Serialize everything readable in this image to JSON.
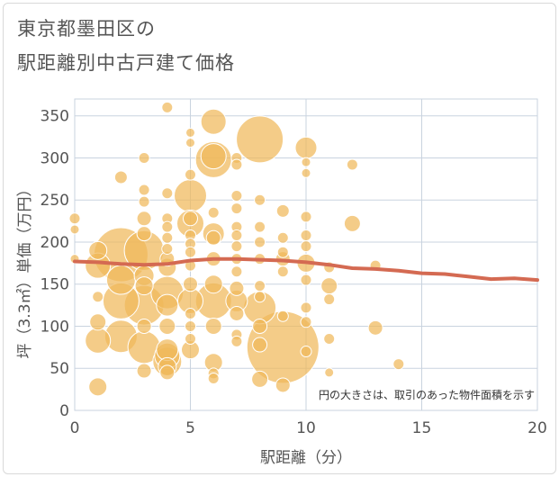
{
  "title_line1": "東京都墨田区の",
  "title_line2": "駅距離別中古戸建て価格",
  "colors": {
    "bubble_fill": "#f0b95a",
    "bubble_stroke": "#ffffff",
    "trend_line": "#d46a52",
    "grid": "#c9d3df",
    "text": "#555555"
  },
  "chart_data": {
    "type": "scatter",
    "xlabel": "駅距離（分）",
    "ylabel": "坪（3.3㎡）単価（万円）",
    "xlim": [
      0,
      20
    ],
    "ylim": [
      0,
      370
    ],
    "x_ticks": [
      0,
      5,
      10,
      15,
      20
    ],
    "y_ticks": [
      0,
      50,
      100,
      150,
      200,
      250,
      300,
      350
    ],
    "grid": true,
    "note": "円の大きさは、取引のあった物件面積を示す",
    "bubbles": [
      {
        "x": 0,
        "y": 228,
        "size": 6
      },
      {
        "x": 0,
        "y": 215,
        "size": 5
      },
      {
        "x": 0,
        "y": 180,
        "size": 5
      },
      {
        "x": 1,
        "y": 190,
        "size": 10
      },
      {
        "x": 1,
        "y": 172,
        "size": 14
      },
      {
        "x": 1,
        "y": 135,
        "size": 6
      },
      {
        "x": 1,
        "y": 105,
        "size": 9
      },
      {
        "x": 1,
        "y": 83,
        "size": 14
      },
      {
        "x": 1,
        "y": 28,
        "size": 10
      },
      {
        "x": 2,
        "y": 277,
        "size": 7
      },
      {
        "x": 2,
        "y": 185,
        "size": 30
      },
      {
        "x": 2,
        "y": 155,
        "size": 16
      },
      {
        "x": 2,
        "y": 130,
        "size": 20
      },
      {
        "x": 2,
        "y": 88,
        "size": 18
      },
      {
        "x": 3,
        "y": 300,
        "size": 6
      },
      {
        "x": 3,
        "y": 262,
        "size": 6
      },
      {
        "x": 3,
        "y": 248,
        "size": 6
      },
      {
        "x": 3,
        "y": 228,
        "size": 8
      },
      {
        "x": 3,
        "y": 210,
        "size": 8
      },
      {
        "x": 3,
        "y": 190,
        "size": 22
      },
      {
        "x": 3,
        "y": 160,
        "size": 11
      },
      {
        "x": 3,
        "y": 148,
        "size": 10
      },
      {
        "x": 3,
        "y": 125,
        "size": 22
      },
      {
        "x": 3,
        "y": 100,
        "size": 8
      },
      {
        "x": 3,
        "y": 75,
        "size": 18
      },
      {
        "x": 3,
        "y": 47,
        "size": 8
      },
      {
        "x": 4,
        "y": 360,
        "size": 6
      },
      {
        "x": 4,
        "y": 258,
        "size": 6
      },
      {
        "x": 4,
        "y": 228,
        "size": 6
      },
      {
        "x": 4,
        "y": 218,
        "size": 6
      },
      {
        "x": 4,
        "y": 205,
        "size": 6
      },
      {
        "x": 4,
        "y": 192,
        "size": 6
      },
      {
        "x": 4,
        "y": 180,
        "size": 8
      },
      {
        "x": 4,
        "y": 170,
        "size": 10
      },
      {
        "x": 4,
        "y": 140,
        "size": 18
      },
      {
        "x": 4,
        "y": 125,
        "size": 12
      },
      {
        "x": 4,
        "y": 100,
        "size": 9
      },
      {
        "x": 4,
        "y": 72,
        "size": 12
      },
      {
        "x": 4,
        "y": 65,
        "size": 14
      },
      {
        "x": 4,
        "y": 58,
        "size": 16
      },
      {
        "x": 4,
        "y": 52,
        "size": 10
      },
      {
        "x": 4,
        "y": 45,
        "size": 8
      },
      {
        "x": 5,
        "y": 330,
        "size": 5
      },
      {
        "x": 5,
        "y": 318,
        "size": 5
      },
      {
        "x": 5,
        "y": 280,
        "size": 6
      },
      {
        "x": 5,
        "y": 255,
        "size": 18
      },
      {
        "x": 5,
        "y": 228,
        "size": 8
      },
      {
        "x": 5,
        "y": 222,
        "size": 15
      },
      {
        "x": 5,
        "y": 208,
        "size": 6
      },
      {
        "x": 5,
        "y": 198,
        "size": 6
      },
      {
        "x": 5,
        "y": 188,
        "size": 6
      },
      {
        "x": 5,
        "y": 172,
        "size": 6
      },
      {
        "x": 5,
        "y": 150,
        "size": 8
      },
      {
        "x": 5,
        "y": 130,
        "size": 14
      },
      {
        "x": 5,
        "y": 115,
        "size": 6
      },
      {
        "x": 5,
        "y": 100,
        "size": 6
      },
      {
        "x": 5,
        "y": 85,
        "size": 6
      },
      {
        "x": 5,
        "y": 72,
        "size": 10
      },
      {
        "x": 6,
        "y": 343,
        "size": 14
      },
      {
        "x": 6,
        "y": 302,
        "size": 14
      },
      {
        "x": 6,
        "y": 298,
        "size": 20
      },
      {
        "x": 6,
        "y": 235,
        "size": 6
      },
      {
        "x": 6,
        "y": 210,
        "size": 12
      },
      {
        "x": 6,
        "y": 205,
        "size": 8
      },
      {
        "x": 6,
        "y": 180,
        "size": 8
      },
      {
        "x": 6,
        "y": 150,
        "size": 10
      },
      {
        "x": 6,
        "y": 130,
        "size": 20
      },
      {
        "x": 6,
        "y": 100,
        "size": 9
      },
      {
        "x": 6,
        "y": 57,
        "size": 10
      },
      {
        "x": 6,
        "y": 44,
        "size": 6
      },
      {
        "x": 6,
        "y": 38,
        "size": 6
      },
      {
        "x": 7,
        "y": 300,
        "size": 6
      },
      {
        "x": 7,
        "y": 292,
        "size": 6
      },
      {
        "x": 7,
        "y": 255,
        "size": 6
      },
      {
        "x": 7,
        "y": 240,
        "size": 6
      },
      {
        "x": 7,
        "y": 218,
        "size": 6
      },
      {
        "x": 7,
        "y": 208,
        "size": 6
      },
      {
        "x": 7,
        "y": 195,
        "size": 6
      },
      {
        "x": 7,
        "y": 180,
        "size": 6
      },
      {
        "x": 7,
        "y": 165,
        "size": 6
      },
      {
        "x": 7,
        "y": 145,
        "size": 8
      },
      {
        "x": 7,
        "y": 130,
        "size": 12
      },
      {
        "x": 7,
        "y": 115,
        "size": 8
      },
      {
        "x": 7,
        "y": 90,
        "size": 6
      },
      {
        "x": 7,
        "y": 82,
        "size": 6
      },
      {
        "x": 8,
        "y": 322,
        "size": 26
      },
      {
        "x": 8,
        "y": 250,
        "size": 6
      },
      {
        "x": 8,
        "y": 218,
        "size": 6
      },
      {
        "x": 8,
        "y": 200,
        "size": 6
      },
      {
        "x": 8,
        "y": 180,
        "size": 6
      },
      {
        "x": 8,
        "y": 148,
        "size": 6
      },
      {
        "x": 8,
        "y": 135,
        "size": 6
      },
      {
        "x": 8,
        "y": 122,
        "size": 18
      },
      {
        "x": 8,
        "y": 100,
        "size": 8
      },
      {
        "x": 8,
        "y": 78,
        "size": 8
      },
      {
        "x": 8,
        "y": 37,
        "size": 9
      },
      {
        "x": 9,
        "y": 237,
        "size": 7
      },
      {
        "x": 9,
        "y": 205,
        "size": 6
      },
      {
        "x": 9,
        "y": 188,
        "size": 6
      },
      {
        "x": 9,
        "y": 180,
        "size": 8
      },
      {
        "x": 9,
        "y": 165,
        "size": 6
      },
      {
        "x": 9,
        "y": 112,
        "size": 6
      },
      {
        "x": 9,
        "y": 75,
        "size": 40
      },
      {
        "x": 9,
        "y": 30,
        "size": 8
      },
      {
        "x": 10,
        "y": 312,
        "size": 12
      },
      {
        "x": 10,
        "y": 295,
        "size": 5
      },
      {
        "x": 10,
        "y": 282,
        "size": 5
      },
      {
        "x": 10,
        "y": 230,
        "size": 6
      },
      {
        "x": 10,
        "y": 208,
        "size": 6
      },
      {
        "x": 10,
        "y": 195,
        "size": 6
      },
      {
        "x": 10,
        "y": 175,
        "size": 10
      },
      {
        "x": 10,
        "y": 155,
        "size": 6
      },
      {
        "x": 10,
        "y": 122,
        "size": 6
      },
      {
        "x": 10,
        "y": 105,
        "size": 6
      },
      {
        "x": 10,
        "y": 70,
        "size": 6
      },
      {
        "x": 11,
        "y": 170,
        "size": 6
      },
      {
        "x": 11,
        "y": 148,
        "size": 9
      },
      {
        "x": 11,
        "y": 132,
        "size": 6
      },
      {
        "x": 11,
        "y": 85,
        "size": 6
      },
      {
        "x": 11,
        "y": 45,
        "size": 5
      },
      {
        "x": 12,
        "y": 292,
        "size": 6
      },
      {
        "x": 12,
        "y": 222,
        "size": 9
      },
      {
        "x": 13,
        "y": 172,
        "size": 6
      },
      {
        "x": 13,
        "y": 98,
        "size": 8
      },
      {
        "x": 14,
        "y": 55,
        "size": 6
      }
    ],
    "trend_line": {
      "x": [
        0,
        1,
        2,
        3,
        4,
        5,
        6,
        7,
        8,
        9,
        10,
        11,
        12,
        13,
        14,
        15,
        16,
        17,
        18,
        19,
        20
      ],
      "y": [
        177,
        176,
        174,
        173,
        174,
        178,
        180,
        180,
        179,
        178,
        176,
        173,
        169,
        168,
        166,
        163,
        162,
        159,
        156,
        157,
        155
      ]
    }
  }
}
